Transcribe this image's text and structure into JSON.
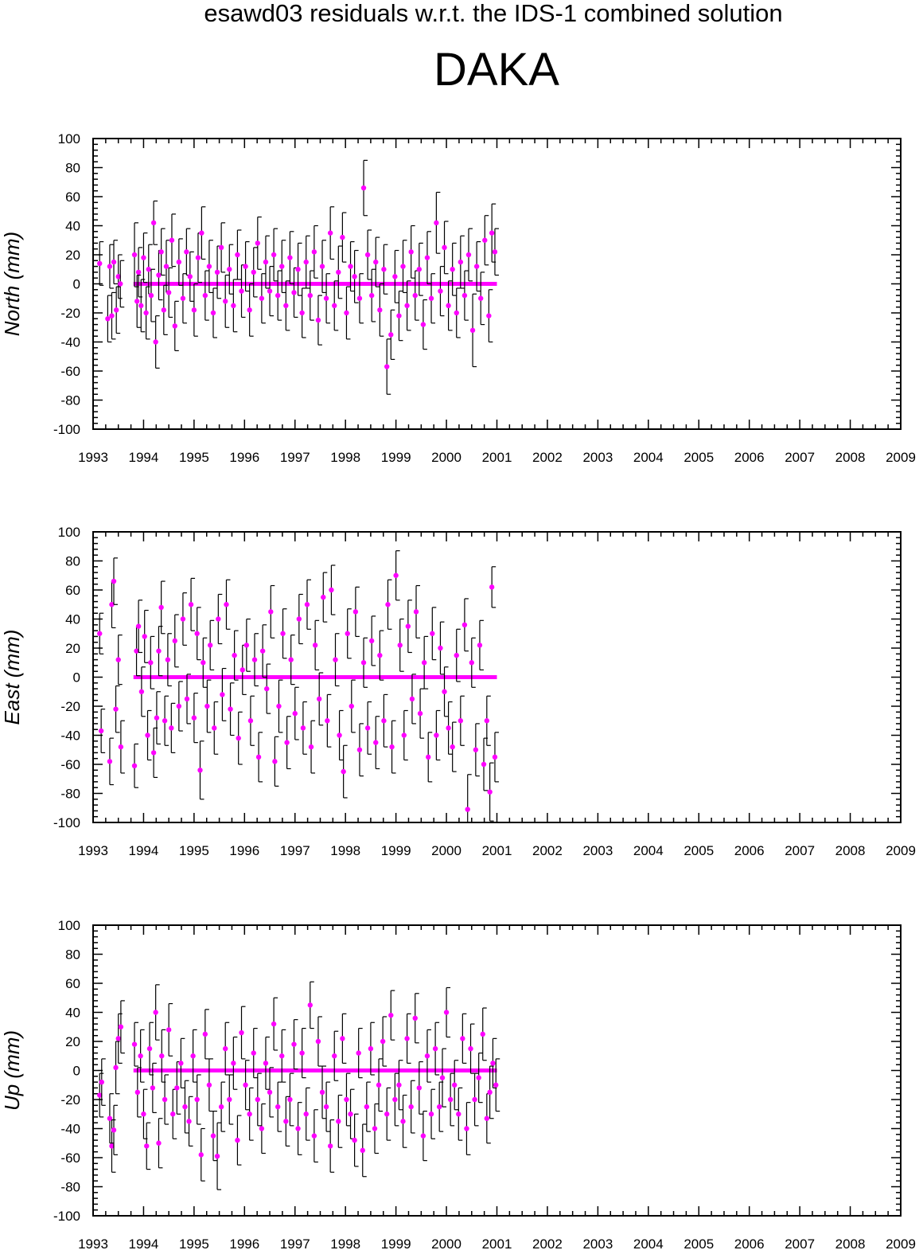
{
  "title": "esawd03 residuals w.r.t. the IDS-1 combined solution",
  "station": "DAKA",
  "colors": {
    "point": "#ff00ff",
    "errorbar": "#000000",
    "axes": "#000000"
  },
  "chart_data": [
    {
      "type": "scatter",
      "ylabel": "North (mm)",
      "xlim": [
        1993,
        2009
      ],
      "ylim": [
        -100,
        100
      ],
      "x_ticks": [
        "1993",
        "1994",
        "1995",
        "1996",
        "1997",
        "1998",
        "1999",
        "2000",
        "2001",
        "2002",
        "2003",
        "2004",
        "2005",
        "2006",
        "2007",
        "2008",
        "2009"
      ],
      "y_ticks": [
        "100",
        "80",
        "60",
        "40",
        "20",
        "0",
        "-20",
        "-40",
        "-60",
        "-80",
        "-100"
      ],
      "series": [
        {
          "x": [
            1993.13,
            1993.29,
            1993.33,
            1993.37,
            1993.41,
            1993.46,
            1993.5,
            1993.54,
            1993.82,
            1993.87,
            1993.9,
            1993.95,
            1994.0,
            1994.05,
            1994.1,
            1994.15,
            1994.2,
            1994.24,
            1994.3,
            1994.35,
            1994.4,
            1994.45,
            1994.5,
            1994.56,
            1994.62,
            1994.7,
            1994.78,
            1994.85,
            1994.92,
            1995.0,
            1995.08,
            1995.15,
            1995.22,
            1995.3,
            1995.38,
            1995.46,
            1995.54,
            1995.62,
            1995.7,
            1995.78,
            1995.86,
            1995.94,
            1996.02,
            1996.1,
            1996.18,
            1996.26,
            1996.34,
            1996.42,
            1996.5,
            1996.58,
            1996.66,
            1996.74,
            1996.82,
            1996.9,
            1996.98,
            1997.06,
            1997.14,
            1997.22,
            1997.3,
            1997.38,
            1997.46,
            1997.54,
            1997.62,
            1997.7,
            1997.78,
            1997.86,
            1997.94,
            1998.02,
            1998.1,
            1998.18,
            1998.28,
            1998.36,
            1998.44,
            1998.52,
            1998.6,
            1998.68,
            1998.76,
            1998.82,
            1998.9,
            1998.98,
            1999.06,
            1999.14,
            1999.22,
            1999.3,
            1999.38,
            1999.46,
            1999.54,
            1999.62,
            1999.7,
            1999.8,
            1999.88,
            1999.96,
            2000.04,
            2000.12,
            2000.2,
            2000.28,
            2000.36,
            2000.44,
            2000.52,
            2000.6,
            2000.68,
            2000.76,
            2000.84,
            2000.9,
            2000.96
          ],
          "y": [
            14,
            -24,
            12,
            -22,
            15,
            -18,
            5,
            0,
            20,
            -12,
            8,
            -15,
            18,
            -20,
            10,
            -8,
            42,
            -40,
            6,
            22,
            -18,
            12,
            -6,
            30,
            -29,
            15,
            -10,
            22,
            5,
            -18,
            18,
            35,
            -8,
            12,
            -20,
            8,
            25,
            -12,
            10,
            -15,
            20,
            -5,
            12,
            -18,
            8,
            28,
            -10,
            15,
            -5,
            20,
            -8,
            12,
            -15,
            18,
            -6,
            10,
            -20,
            15,
            -8,
            22,
            -25,
            12,
            -10,
            35,
            -15,
            8,
            32,
            -20,
            12,
            5,
            -10,
            66,
            20,
            -8,
            15,
            -18,
            10,
            -57,
            -35,
            5,
            -22,
            12,
            -15,
            22,
            -8,
            10,
            -28,
            18,
            -10,
            42,
            -5,
            25,
            -15,
            10,
            -20,
            15,
            -8,
            20,
            -32,
            12,
            -10,
            30,
            -22,
            35,
            22
          ],
          "err": [
            15,
            16,
            15,
            16,
            15,
            16,
            15,
            16,
            22,
            18,
            17,
            18,
            17,
            18,
            17,
            18,
            15,
            18,
            17,
            16,
            17,
            18,
            17,
            18,
            17,
            16,
            17,
            16,
            17,
            18,
            17,
            18,
            17,
            18,
            17,
            18,
            17,
            18,
            17,
            18,
            17,
            18,
            17,
            18,
            17,
            18,
            17,
            18,
            17,
            18,
            17,
            18,
            17,
            18,
            17,
            18,
            17,
            18,
            17,
            18,
            17,
            18,
            17,
            18,
            17,
            18,
            17,
            18,
            17,
            18,
            17,
            19,
            17,
            18,
            17,
            18,
            17,
            19,
            17,
            18,
            17,
            18,
            17,
            18,
            17,
            18,
            17,
            18,
            17,
            21,
            17,
            18,
            17,
            18,
            17,
            18,
            17,
            18,
            25,
            17,
            18,
            17,
            18,
            20,
            16
          ]
        }
      ]
    },
    {
      "type": "scatter",
      "ylabel": "East (mm)",
      "xlim": [
        1993,
        2009
      ],
      "ylim": [
        -100,
        100
      ],
      "x_ticks": [
        "1993",
        "1994",
        "1995",
        "1996",
        "1997",
        "1998",
        "1999",
        "2000",
        "2001",
        "2002",
        "2003",
        "2004",
        "2005",
        "2006",
        "2007",
        "2008",
        "2009"
      ],
      "y_ticks": [
        "100",
        "80",
        "60",
        "40",
        "20",
        "0",
        "-20",
        "-40",
        "-60",
        "-80",
        "-100"
      ],
      "series": [
        {
          "x": [
            1993.13,
            1993.16,
            1993.33,
            1993.37,
            1993.41,
            1993.45,
            1993.5,
            1993.55,
            1993.82,
            1993.86,
            1993.9,
            1993.96,
            1994.02,
            1994.08,
            1994.14,
            1994.2,
            1994.26,
            1994.3,
            1994.35,
            1994.42,
            1994.48,
            1994.55,
            1994.62,
            1994.7,
            1994.78,
            1994.86,
            1994.94,
            1995.0,
            1995.06,
            1995.12,
            1995.18,
            1995.26,
            1995.32,
            1995.4,
            1995.48,
            1995.56,
            1995.64,
            1995.72,
            1995.8,
            1995.88,
            1995.96,
            1996.04,
            1996.12,
            1996.2,
            1996.28,
            1996.36,
            1996.44,
            1996.52,
            1996.6,
            1996.68,
            1996.76,
            1996.84,
            1996.92,
            1997.0,
            1997.08,
            1997.16,
            1997.24,
            1997.32,
            1997.4,
            1997.48,
            1997.56,
            1997.64,
            1997.72,
            1997.8,
            1997.88,
            1997.96,
            1998.04,
            1998.12,
            1998.2,
            1998.28,
            1998.36,
            1998.44,
            1998.52,
            1998.6,
            1998.68,
            1998.76,
            1998.84,
            1998.92,
            1999.0,
            1999.08,
            1999.16,
            1999.24,
            1999.32,
            1999.4,
            1999.48,
            1999.56,
            1999.64,
            1999.72,
            1999.8,
            1999.88,
            1999.96,
            2000.04,
            2000.12,
            2000.2,
            2000.28,
            2000.36,
            2000.42,
            2000.5,
            2000.58,
            2000.66,
            2000.74,
            2000.8,
            2000.86,
            2000.9,
            2000.96
          ],
          "y": [
            30,
            -37,
            -58,
            50,
            66,
            -22,
            12,
            -48,
            -61,
            18,
            35,
            -10,
            28,
            -40,
            10,
            -52,
            -28,
            18,
            48,
            -30,
            12,
            -35,
            25,
            -20,
            40,
            -15,
            50,
            -28,
            30,
            -64,
            10,
            -20,
            22,
            -35,
            40,
            -12,
            50,
            -22,
            15,
            -42,
            5,
            22,
            -30,
            12,
            -55,
            18,
            -8,
            45,
            -58,
            -20,
            30,
            -45,
            12,
            -25,
            40,
            -35,
            50,
            -48,
            22,
            -15,
            55,
            -30,
            60,
            12,
            -40,
            -65,
            30,
            -20,
            45,
            -50,
            10,
            -35,
            25,
            -45,
            15,
            -30,
            50,
            -48,
            70,
            22,
            -40,
            35,
            -15,
            45,
            -25,
            10,
            -55,
            30,
            -40,
            20,
            -10,
            -35,
            -48,
            15,
            -30,
            36,
            -91,
            10,
            -50,
            22,
            -60,
            -30,
            -79,
            62,
            -55
          ],
          "err": [
            14,
            15,
            16,
            16,
            16,
            16,
            17,
            18,
            15,
            17,
            18,
            17,
            18,
            17,
            18,
            17,
            18,
            17,
            18,
            17,
            18,
            17,
            18,
            17,
            18,
            17,
            18,
            17,
            18,
            20,
            17,
            18,
            17,
            18,
            17,
            18,
            17,
            18,
            17,
            18,
            17,
            18,
            17,
            18,
            17,
            18,
            17,
            18,
            17,
            18,
            17,
            18,
            17,
            18,
            17,
            18,
            17,
            18,
            17,
            18,
            17,
            18,
            17,
            18,
            17,
            18,
            17,
            18,
            17,
            18,
            17,
            18,
            17,
            18,
            17,
            18,
            17,
            18,
            17,
            18,
            17,
            18,
            17,
            18,
            17,
            18,
            17,
            18,
            17,
            18,
            17,
            18,
            17,
            18,
            17,
            18,
            24,
            17,
            18,
            17,
            18,
            17,
            20,
            14,
            17
          ]
        }
      ]
    },
    {
      "type": "scatter",
      "ylabel": "Up (mm)",
      "xlim": [
        1993,
        2009
      ],
      "ylim": [
        -100,
        100
      ],
      "x_ticks": [
        "1993",
        "1994",
        "1995",
        "1996",
        "1997",
        "1998",
        "1999",
        "2000",
        "2001",
        "2002",
        "2003",
        "2004",
        "2005",
        "2006",
        "2007",
        "2008",
        "2009"
      ],
      "y_ticks": [
        "100",
        "80",
        "60",
        "40",
        "20",
        "0",
        "-20",
        "-40",
        "-60",
        "-80",
        "-100"
      ],
      "series": [
        {
          "x": [
            1993.13,
            1993.17,
            1993.33,
            1993.37,
            1993.41,
            1993.45,
            1993.5,
            1993.55,
            1993.82,
            1993.88,
            1993.94,
            1994.0,
            1994.06,
            1994.12,
            1994.18,
            1994.24,
            1994.3,
            1994.36,
            1994.42,
            1994.5,
            1994.58,
            1994.66,
            1994.74,
            1994.82,
            1994.9,
            1994.98,
            1995.06,
            1995.14,
            1995.22,
            1995.3,
            1995.38,
            1995.46,
            1995.54,
            1995.62,
            1995.7,
            1995.78,
            1995.86,
            1995.94,
            1996.02,
            1996.1,
            1996.18,
            1996.26,
            1996.34,
            1996.42,
            1996.5,
            1996.58,
            1996.66,
            1996.74,
            1996.82,
            1996.9,
            1996.98,
            1997.06,
            1997.14,
            1997.22,
            1997.3,
            1997.38,
            1997.46,
            1997.54,
            1997.62,
            1997.7,
            1997.78,
            1997.86,
            1997.94,
            1998.02,
            1998.1,
            1998.18,
            1998.26,
            1998.34,
            1998.42,
            1998.5,
            1998.58,
            1998.66,
            1998.74,
            1998.82,
            1998.9,
            1998.98,
            1999.06,
            1999.14,
            1999.22,
            1999.3,
            1999.38,
            1999.46,
            1999.54,
            1999.62,
            1999.7,
            1999.78,
            1999.86,
            1999.92,
            2000.0,
            2000.08,
            2000.16,
            2000.24,
            2000.32,
            2000.4,
            2000.48,
            2000.56,
            2000.64,
            2000.72,
            2000.8,
            2000.86,
            2000.92,
            2000.98
          ],
          "y": [
            -17,
            -8,
            -33,
            -52,
            -41,
            2,
            22,
            30,
            18,
            -15,
            10,
            -30,
            -52,
            15,
            -12,
            40,
            -50,
            10,
            -20,
            28,
            -30,
            -12,
            5,
            -25,
            -35,
            10,
            -20,
            -58,
            25,
            -10,
            -45,
            -59,
            -25,
            15,
            -20,
            5,
            -48,
            26,
            -10,
            -30,
            12,
            -20,
            -40,
            5,
            -15,
            32,
            -25,
            10,
            -35,
            -20,
            18,
            -40,
            12,
            -30,
            45,
            -45,
            20,
            -15,
            -25,
            -52,
            10,
            -35,
            22,
            -20,
            -30,
            -48,
            12,
            -55,
            -25,
            15,
            -40,
            -10,
            20,
            -30,
            38,
            -20,
            -10,
            -35,
            22,
            -25,
            36,
            -12,
            -45,
            10,
            -30,
            15,
            -25,
            -5,
            40,
            -20,
            -10,
            -30,
            22,
            -40,
            15,
            -20,
            -5,
            25,
            -33,
            -15,
            5,
            -10
          ],
          "err": [
            15,
            16,
            17,
            18,
            17,
            18,
            17,
            18,
            15,
            17,
            18,
            17,
            16,
            18,
            17,
            19,
            17,
            18,
            17,
            18,
            17,
            18,
            17,
            18,
            17,
            18,
            17,
            18,
            17,
            18,
            17,
            23,
            17,
            18,
            17,
            18,
            17,
            18,
            17,
            18,
            17,
            18,
            17,
            18,
            17,
            18,
            17,
            18,
            17,
            18,
            17,
            18,
            17,
            18,
            16,
            18,
            17,
            18,
            17,
            18,
            17,
            18,
            17,
            18,
            17,
            18,
            17,
            18,
            17,
            18,
            17,
            18,
            17,
            18,
            17,
            18,
            17,
            18,
            17,
            18,
            17,
            18,
            17,
            18,
            17,
            18,
            17,
            20,
            17,
            18,
            17,
            18,
            17,
            18,
            17,
            18,
            17,
            18,
            17,
            18,
            17,
            18
          ]
        }
      ]
    }
  ]
}
